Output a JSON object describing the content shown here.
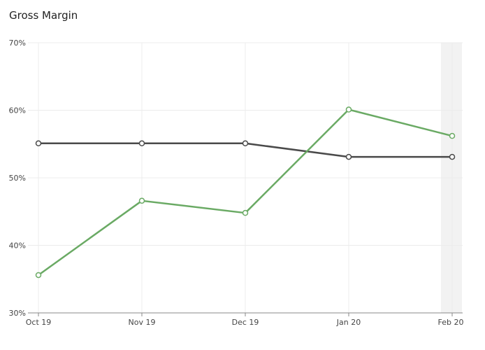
{
  "chart_data": {
    "type": "line",
    "title": "Gross Margin",
    "xlabel": "",
    "ylabel": "",
    "categories": [
      "Oct 19",
      "Nov 19",
      "Dec 19",
      "Jan 20",
      "Feb 20"
    ],
    "y_ticks": [
      "30%",
      "40%",
      "50%",
      "60%",
      "70%"
    ],
    "ylim": [
      30,
      70
    ],
    "grid": true,
    "highlighted_category": "Feb 20",
    "series": [
      {
        "color": "#4a4a4a",
        "values": [
          55.1,
          55.1,
          55.1,
          53.1,
          53.1
        ]
      },
      {
        "color": "#6aaa64",
        "values": [
          35.6,
          46.6,
          44.8,
          60.1,
          56.2
        ]
      }
    ]
  }
}
